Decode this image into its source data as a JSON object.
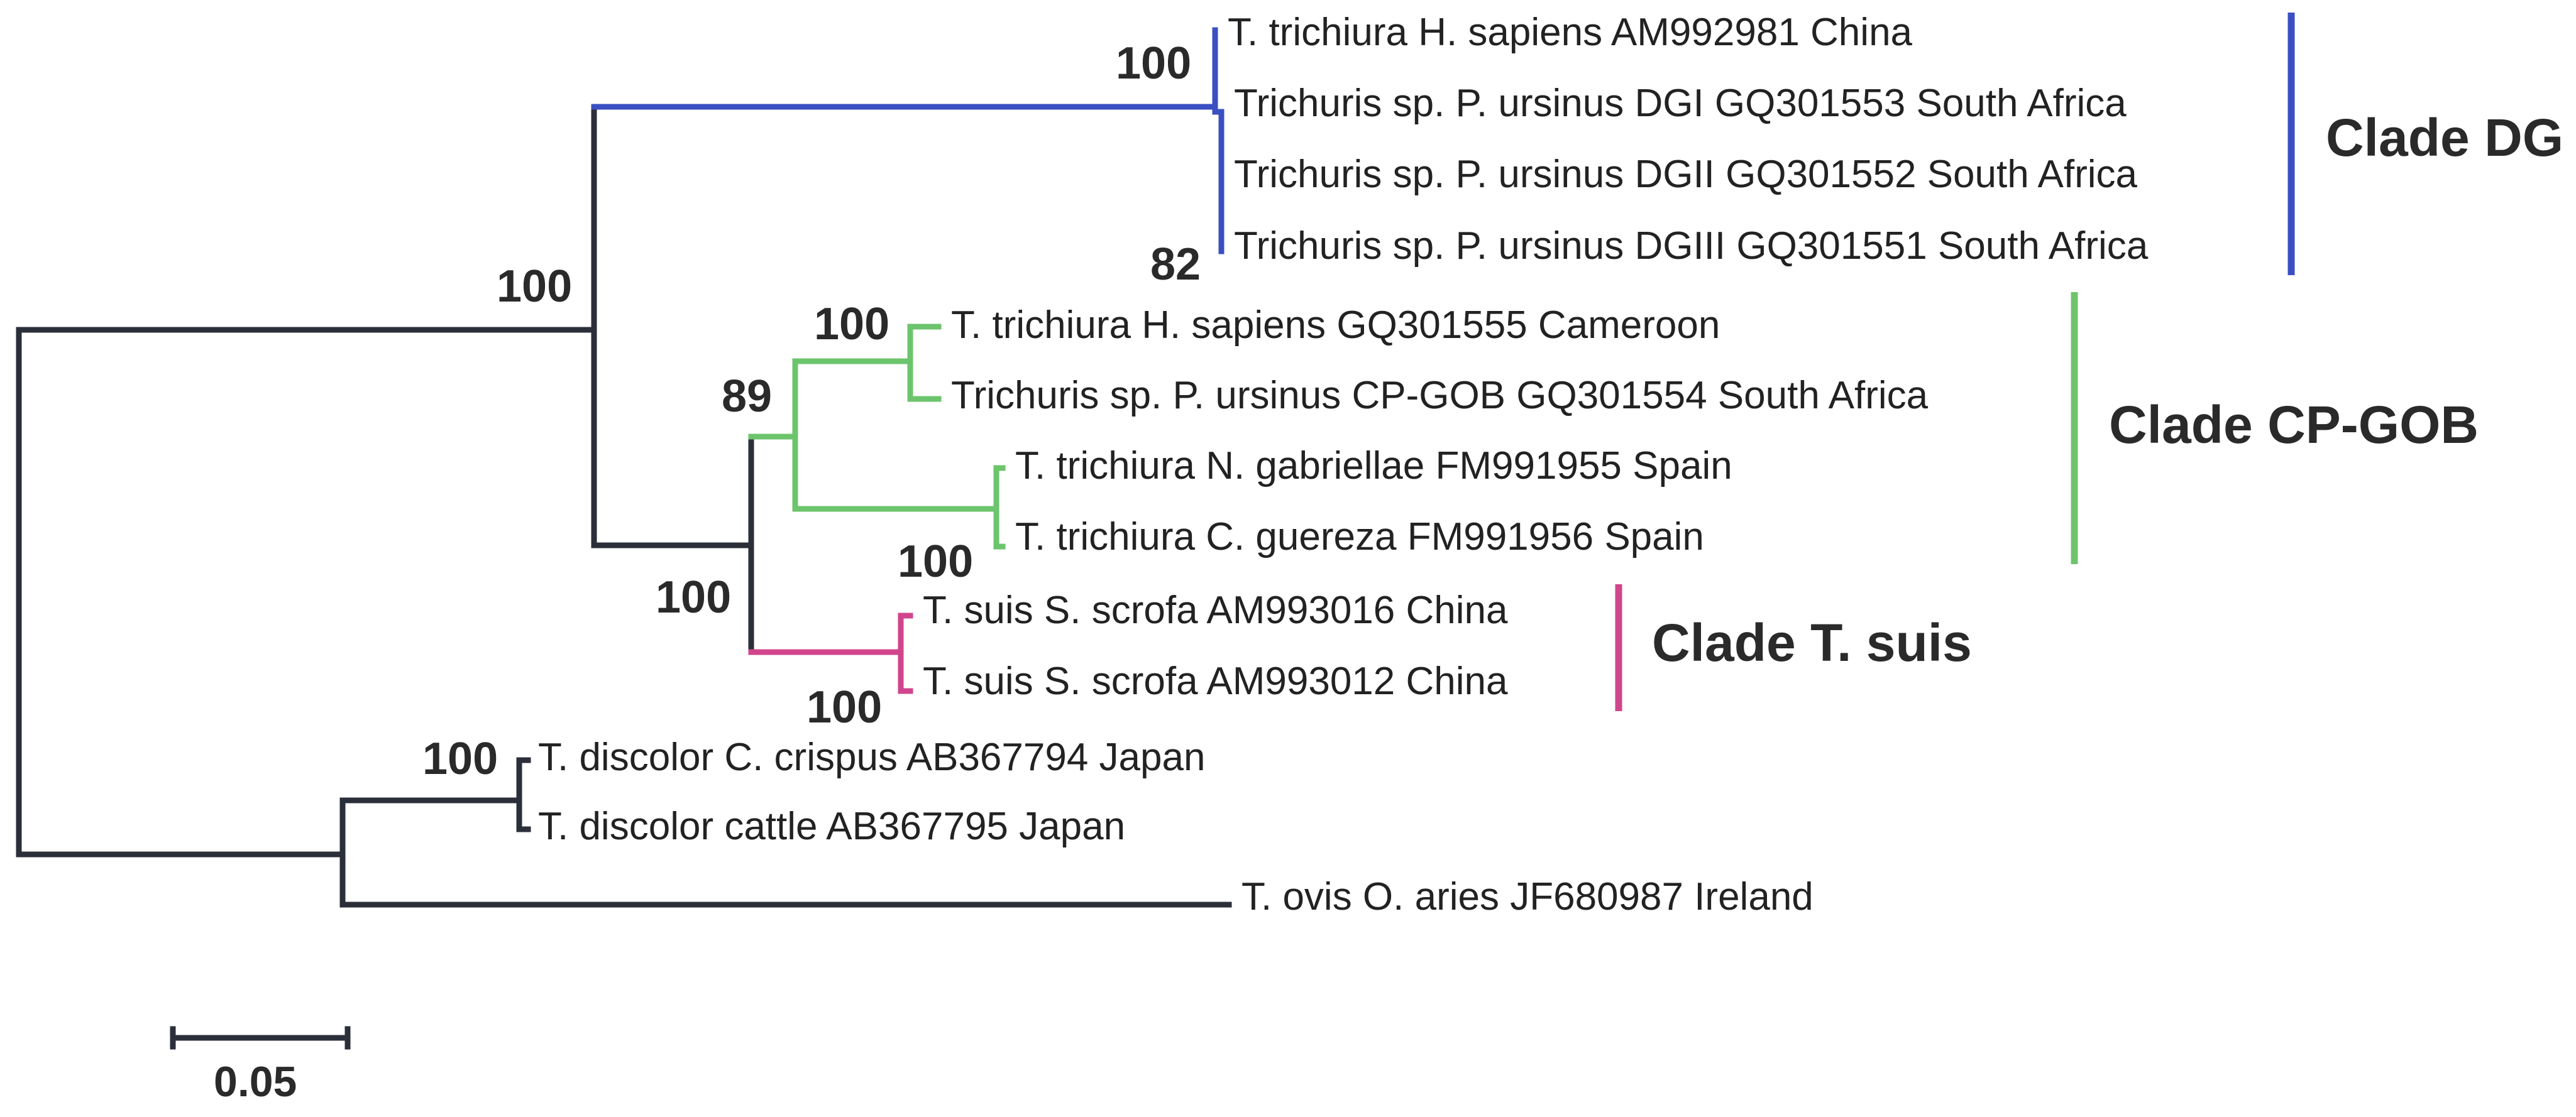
{
  "colors": {
    "backbone": "#2b2f3a",
    "clade_dg": "#3a4fc2",
    "clade_cp_gob": "#6cc46c",
    "clade_t_suis": "#d0458c"
  },
  "taxa": [
    "T. trichiura H. sapiens AM992981 China",
    "Trichuris sp. P. ursinus DGI GQ301553 South Africa",
    "Trichuris sp. P. ursinus DGII GQ301552 South Africa",
    "Trichuris sp. P. ursinus DGIII GQ301551 South Africa",
    "T. trichiura H. sapiens GQ301555 Cameroon",
    "Trichuris sp. P. ursinus CP-GOB GQ301554 South Africa",
    "T. trichiura N. gabriellae FM991955 Spain",
    "T. trichiura C. guereza FM991956 Spain",
    "T. suis S. scrofa AM993016 China",
    "T. suis S. scrofa AM993012 China",
    "T. discolor C. crispus AB367794 Japan",
    "T. discolor cattle AB367795 Japan",
    "T. ovis O. aries JF680987 Ireland"
  ],
  "support": {
    "dg_crown": "100",
    "dg_inner": "82",
    "main_clade": "100",
    "cp_gob_outer": "89",
    "cp_gob_pair1": "100",
    "cp_gob_pair2": "100",
    "ingroup": "100",
    "t_suis": "100",
    "discolor": "100"
  },
  "clades": {
    "dg": "Clade DG",
    "cp_gob": "Clade CP-GOB",
    "t_suis": "Clade T. suis"
  },
  "scale_bar": {
    "value": "0.05"
  }
}
